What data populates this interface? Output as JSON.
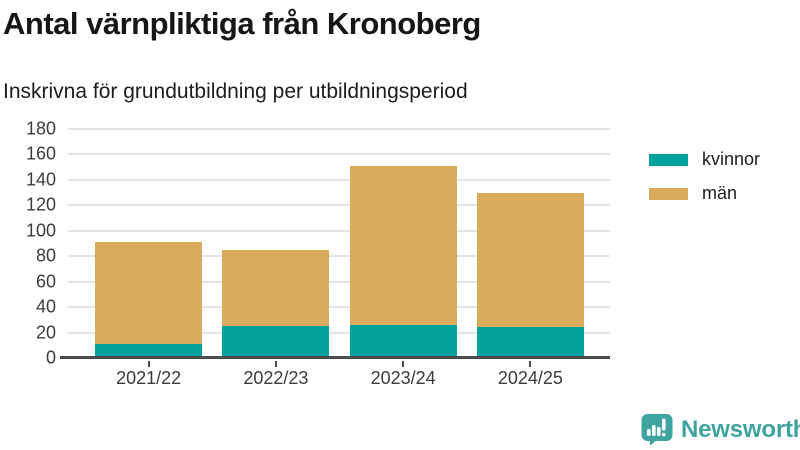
{
  "title": "Antal värnpliktiga från Kronoberg",
  "subtitle": "Inskrivna för grundutbildning per utbildningsperiod",
  "chart_data": {
    "type": "bar",
    "stacked": true,
    "title": "Antal värnpliktiga från Kronoberg",
    "subtitle": "Inskrivna för grundutbildning per utbildningsperiod",
    "categories": [
      "2021/22",
      "2022/23",
      "2023/24",
      "2024/25"
    ],
    "series": [
      {
        "name": "kvinnor",
        "color": "#00a29b",
        "values": [
          11,
          25,
          26,
          24
        ]
      },
      {
        "name": "män",
        "color": "#d9ab5a",
        "values": [
          80,
          60,
          125,
          106
        ]
      }
    ],
    "stack_totals": [
      91,
      85,
      151,
      130
    ],
    "ylim": [
      0,
      180
    ],
    "ytick_step": 20,
    "xlabel": "",
    "ylabel": "",
    "grid": true,
    "legend_position": "right"
  },
  "colors": {
    "kvinnor": "#00a29b",
    "man": "#d9ab5a",
    "axis": "#4a4a4a",
    "grid": "#e4e4e4",
    "text": "#1d1d1d",
    "brand": "#3fa3a0"
  },
  "branding": {
    "logo_text": "Newsworthy",
    "logo_icon": "bar-chart-speech-bubble-icon"
  }
}
